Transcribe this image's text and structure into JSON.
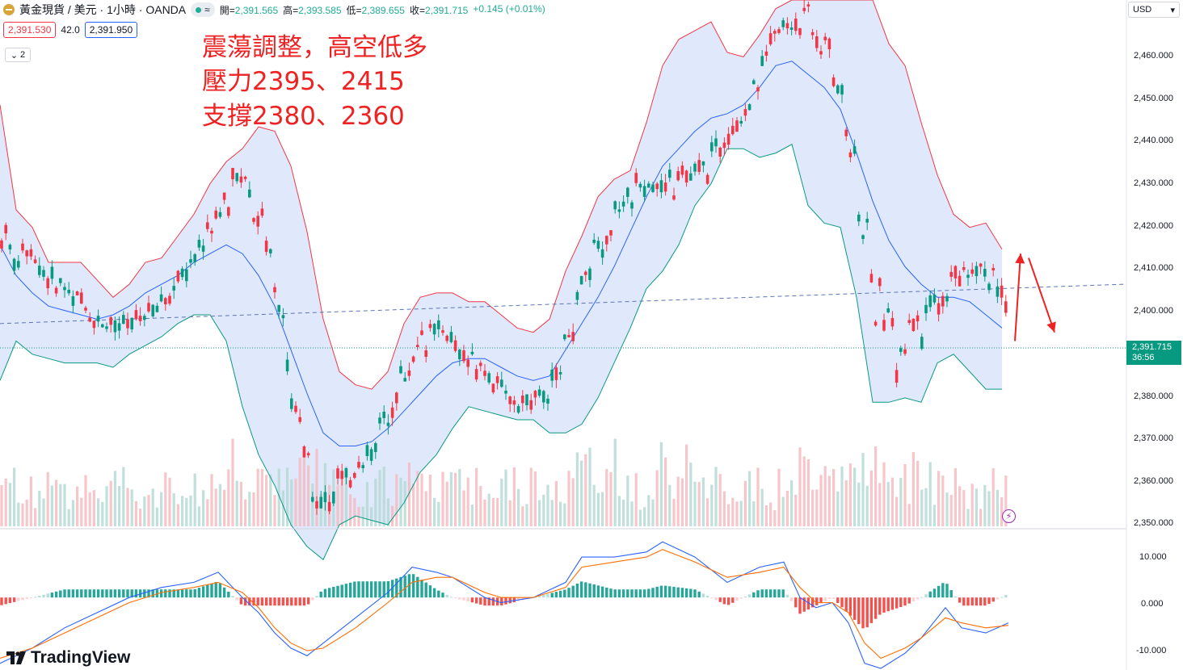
{
  "header": {
    "symbol_title": "黃金現貨 / 美元 · 1小時 · OANDA",
    "pill_symbol": "≈",
    "ohlc": [
      {
        "label": "開=",
        "value": "2,391.565"
      },
      {
        "label": "高=",
        "value": "2,393.585"
      },
      {
        "label": "低=",
        "value": "2,389.655"
      },
      {
        "label": "收=",
        "value": "2,391.715"
      },
      {
        "label": "",
        "value": "+0.145 (+0.01%)"
      }
    ]
  },
  "trade": {
    "sell_price": "2,391.530",
    "spread": "42.0",
    "buy_price": "2,391.950"
  },
  "indicators_toggle": {
    "count": "2"
  },
  "annotation": {
    "line1": "震蕩調整，高空低多",
    "line2": "壓力2395、2415",
    "line3": "支撐2380、2360"
  },
  "price_axis": {
    "currency": "USD",
    "current_price": "2,391.715",
    "countdown": "36:56",
    "ticks": [
      "2,460.000",
      "2,450.000",
      "2,440.000",
      "2,430.000",
      "2,420.000",
      "2,410.000",
      "2,400.000",
      "2,380.000",
      "2,370.000",
      "2,360.000",
      "2,350.000"
    ]
  },
  "macd_axis": {
    "ticks": [
      "10.000",
      "0.000",
      "-10.000"
    ]
  },
  "branding": {
    "name": "TradingView"
  },
  "colors": {
    "up": "#089981",
    "down": "#f23645",
    "bb_upper": "#f23645",
    "bb_mid": "#2962ff",
    "bb_lower": "#089981",
    "bb_fill": "#d6e2fb",
    "macd": "#2962ff",
    "signal": "#ff6d00",
    "annotation": "#ee2222"
  },
  "chart_data": {
    "type": "candlestick",
    "timeframe": "1h",
    "price_axis_range": [
      2350,
      2470
    ],
    "current_price": 2391.715,
    "bollinger": {
      "upper": [
        [
          0,
          2446
        ],
        [
          20,
          2422
        ],
        [
          40,
          2418
        ],
        [
          60,
          2410
        ],
        [
          80,
          2410
        ],
        [
          100,
          2410
        ],
        [
          120,
          2406
        ],
        [
          140,
          2402
        ],
        [
          160,
          2405
        ],
        [
          180,
          2410
        ],
        [
          200,
          2411
        ],
        [
          220,
          2416
        ],
        [
          240,
          2421
        ],
        [
          260,
          2428
        ],
        [
          280,
          2433
        ],
        [
          300,
          2436
        ],
        [
          320,
          2441
        ],
        [
          340,
          2440
        ],
        [
          360,
          2432
        ],
        [
          380,
          2417
        ],
        [
          400,
          2397
        ],
        [
          420,
          2385
        ],
        [
          440,
          2382
        ],
        [
          460,
          2381
        ],
        [
          480,
          2385
        ],
        [
          500,
          2396
        ],
        [
          520,
          2402
        ],
        [
          540,
          2403
        ],
        [
          560,
          2403
        ],
        [
          580,
          2401
        ],
        [
          600,
          2401
        ],
        [
          620,
          2398
        ],
        [
          640,
          2395
        ],
        [
          660,
          2394
        ],
        [
          680,
          2397
        ],
        [
          700,
          2408
        ],
        [
          720,
          2416
        ],
        [
          740,
          2425
        ],
        [
          760,
          2429
        ],
        [
          780,
          2431
        ],
        [
          800,
          2442
        ],
        [
          820,
          2455
        ],
        [
          840,
          2461
        ],
        [
          860,
          2463
        ],
        [
          880,
          2465
        ],
        [
          900,
          2458
        ],
        [
          920,
          2457
        ],
        [
          940,
          2462
        ],
        [
          960,
          2468
        ],
        [
          980,
          2470
        ],
        [
          1000,
          2470
        ],
        [
          1020,
          2470
        ],
        [
          1040,
          2470
        ],
        [
          1060,
          2470
        ],
        [
          1080,
          2470
        ],
        [
          1100,
          2460
        ],
        [
          1120,
          2455
        ],
        [
          1140,
          2442
        ],
        [
          1160,
          2430
        ],
        [
          1180,
          2421
        ],
        [
          1200,
          2418
        ],
        [
          1220,
          2419
        ],
        [
          1240,
          2413
        ]
      ],
      "middle": [
        [
          0,
          2414
        ],
        [
          20,
          2407
        ],
        [
          40,
          2403
        ],
        [
          60,
          2400
        ],
        [
          80,
          2399
        ],
        [
          100,
          2398
        ],
        [
          120,
          2397
        ],
        [
          140,
          2398
        ],
        [
          160,
          2400
        ],
        [
          180,
          2403
        ],
        [
          200,
          2405
        ],
        [
          220,
          2407
        ],
        [
          240,
          2410
        ],
        [
          260,
          2412
        ],
        [
          280,
          2414
        ],
        [
          300,
          2412
        ],
        [
          320,
          2407
        ],
        [
          340,
          2400
        ],
        [
          360,
          2390
        ],
        [
          380,
          2380
        ],
        [
          400,
          2371
        ],
        [
          420,
          2368
        ],
        [
          440,
          2368
        ],
        [
          460,
          2369
        ],
        [
          480,
          2372
        ],
        [
          500,
          2376
        ],
        [
          520,
          2380
        ],
        [
          540,
          2384
        ],
        [
          560,
          2387
        ],
        [
          580,
          2388
        ],
        [
          600,
          2388
        ],
        [
          620,
          2386
        ],
        [
          640,
          2384
        ],
        [
          660,
          2383
        ],
        [
          680,
          2384
        ],
        [
          700,
          2390
        ],
        [
          720,
          2396
        ],
        [
          740,
          2402
        ],
        [
          760,
          2409
        ],
        [
          780,
          2417
        ],
        [
          800,
          2425
        ],
        [
          820,
          2432
        ],
        [
          840,
          2436
        ],
        [
          860,
          2440
        ],
        [
          880,
          2443
        ],
        [
          900,
          2444
        ],
        [
          920,
          2446
        ],
        [
          940,
          2450
        ],
        [
          960,
          2455
        ],
        [
          980,
          2456
        ],
        [
          1000,
          2453
        ],
        [
          1020,
          2450
        ],
        [
          1040,
          2445
        ],
        [
          1060,
          2435
        ],
        [
          1080,
          2424
        ],
        [
          1100,
          2415
        ],
        [
          1120,
          2409
        ],
        [
          1140,
          2405
        ],
        [
          1160,
          2402
        ],
        [
          1180,
          2402
        ],
        [
          1200,
          2401
        ],
        [
          1220,
          2398
        ],
        [
          1240,
          2395
        ]
      ],
      "lower": [
        [
          0,
          2383
        ],
        [
          20,
          2392
        ],
        [
          40,
          2389
        ],
        [
          60,
          2388
        ],
        [
          80,
          2387
        ],
        [
          100,
          2387
        ],
        [
          120,
          2387
        ],
        [
          140,
          2386
        ],
        [
          160,
          2389
        ],
        [
          180,
          2391
        ],
        [
          200,
          2393
        ],
        [
          220,
          2396
        ],
        [
          240,
          2398
        ],
        [
          260,
          2398
        ],
        [
          280,
          2392
        ],
        [
          300,
          2377
        ],
        [
          320,
          2366
        ],
        [
          340,
          2359
        ],
        [
          360,
          2350
        ],
        [
          380,
          2345
        ],
        [
          400,
          2342
        ],
        [
          420,
          2350
        ],
        [
          440,
          2352
        ],
        [
          460,
          2351
        ],
        [
          480,
          2350
        ],
        [
          500,
          2355
        ],
        [
          520,
          2362
        ],
        [
          540,
          2366
        ],
        [
          560,
          2372
        ],
        [
          580,
          2377
        ],
        [
          600,
          2376
        ],
        [
          620,
          2375
        ],
        [
          640,
          2374
        ],
        [
          660,
          2374
        ],
        [
          680,
          2371
        ],
        [
          700,
          2371
        ],
        [
          720,
          2373
        ],
        [
          740,
          2379
        ],
        [
          760,
          2387
        ],
        [
          780,
          2395
        ],
        [
          800,
          2404
        ],
        [
          820,
          2408
        ],
        [
          840,
          2414
        ],
        [
          860,
          2423
        ],
        [
          880,
          2428
        ],
        [
          900,
          2436
        ],
        [
          920,
          2436
        ],
        [
          940,
          2434
        ],
        [
          960,
          2435
        ],
        [
          980,
          2437
        ],
        [
          1000,
          2423
        ],
        [
          1020,
          2419
        ],
        [
          1040,
          2418
        ],
        [
          1060,
          2402
        ],
        [
          1080,
          2378
        ],
        [
          1100,
          2378
        ],
        [
          1120,
          2379
        ],
        [
          1140,
          2378
        ],
        [
          1160,
          2387
        ],
        [
          1180,
          2389
        ],
        [
          1200,
          2385
        ],
        [
          1220,
          2381
        ],
        [
          1240,
          2381
        ]
      ]
    },
    "trendline": {
      "from": [
        0,
        2396
      ],
      "to": [
        1392,
        2405
      ]
    },
    "arrows": [
      {
        "from": [
          1256,
          2392
        ],
        "to": [
          1263,
          2412
        ]
      },
      {
        "from": [
          1273,
          2411
        ],
        "to": [
          1305,
          2394
        ]
      }
    ],
    "macd_axis_range": [
      -14,
      12
    ],
    "macd_line": [
      [
        0,
        -13
      ],
      [
        40,
        -10
      ],
      [
        80,
        -6
      ],
      [
        120,
        -3
      ],
      [
        160,
        0
      ],
      [
        200,
        2
      ],
      [
        240,
        3
      ],
      [
        270,
        5
      ],
      [
        300,
        0
      ],
      [
        320,
        -3
      ],
      [
        340,
        -7
      ],
      [
        360,
        -10
      ],
      [
        380,
        -11.5
      ],
      [
        400,
        -9
      ],
      [
        440,
        -4
      ],
      [
        480,
        1
      ],
      [
        510,
        6
      ],
      [
        540,
        5
      ],
      [
        560,
        4
      ],
      [
        600,
        0
      ],
      [
        620,
        -1
      ],
      [
        660,
        0
      ],
      [
        700,
        3
      ],
      [
        720,
        8
      ],
      [
        760,
        8
      ],
      [
        800,
        9
      ],
      [
        820,
        11
      ],
      [
        860,
        8
      ],
      [
        900,
        3
      ],
      [
        940,
        6
      ],
      [
        970,
        7
      ],
      [
        990,
        0
      ],
      [
        1010,
        -2
      ],
      [
        1030,
        -1
      ],
      [
        1050,
        -5
      ],
      [
        1070,
        -13
      ],
      [
        1090,
        -14
      ],
      [
        1120,
        -11
      ],
      [
        1140,
        -8
      ],
      [
        1170,
        -2
      ],
      [
        1190,
        -6
      ],
      [
        1220,
        -7
      ],
      [
        1248,
        -5
      ]
    ],
    "signal_line": [
      [
        0,
        -12
      ],
      [
        40,
        -10
      ],
      [
        80,
        -7
      ],
      [
        120,
        -4
      ],
      [
        160,
        -1
      ],
      [
        200,
        1
      ],
      [
        240,
        2
      ],
      [
        270,
        3
      ],
      [
        300,
        1
      ],
      [
        320,
        -2
      ],
      [
        340,
        -6
      ],
      [
        360,
        -9
      ],
      [
        380,
        -10.5
      ],
      [
        400,
        -10
      ],
      [
        440,
        -6
      ],
      [
        480,
        -1
      ],
      [
        510,
        3
      ],
      [
        540,
        4
      ],
      [
        560,
        4
      ],
      [
        600,
        1
      ],
      [
        620,
        0
      ],
      [
        660,
        0
      ],
      [
        700,
        2
      ],
      [
        720,
        6
      ],
      [
        760,
        7
      ],
      [
        800,
        8
      ],
      [
        820,
        9.5
      ],
      [
        860,
        7
      ],
      [
        900,
        4
      ],
      [
        940,
        5
      ],
      [
        970,
        6
      ],
      [
        990,
        2
      ],
      [
        1010,
        -1
      ],
      [
        1030,
        -1
      ],
      [
        1050,
        -3
      ],
      [
        1070,
        -9
      ],
      [
        1090,
        -12
      ],
      [
        1120,
        -10
      ],
      [
        1140,
        -8
      ],
      [
        1170,
        -4
      ],
      [
        1190,
        -5
      ],
      [
        1220,
        -6
      ],
      [
        1248,
        -5.5
      ]
    ]
  }
}
